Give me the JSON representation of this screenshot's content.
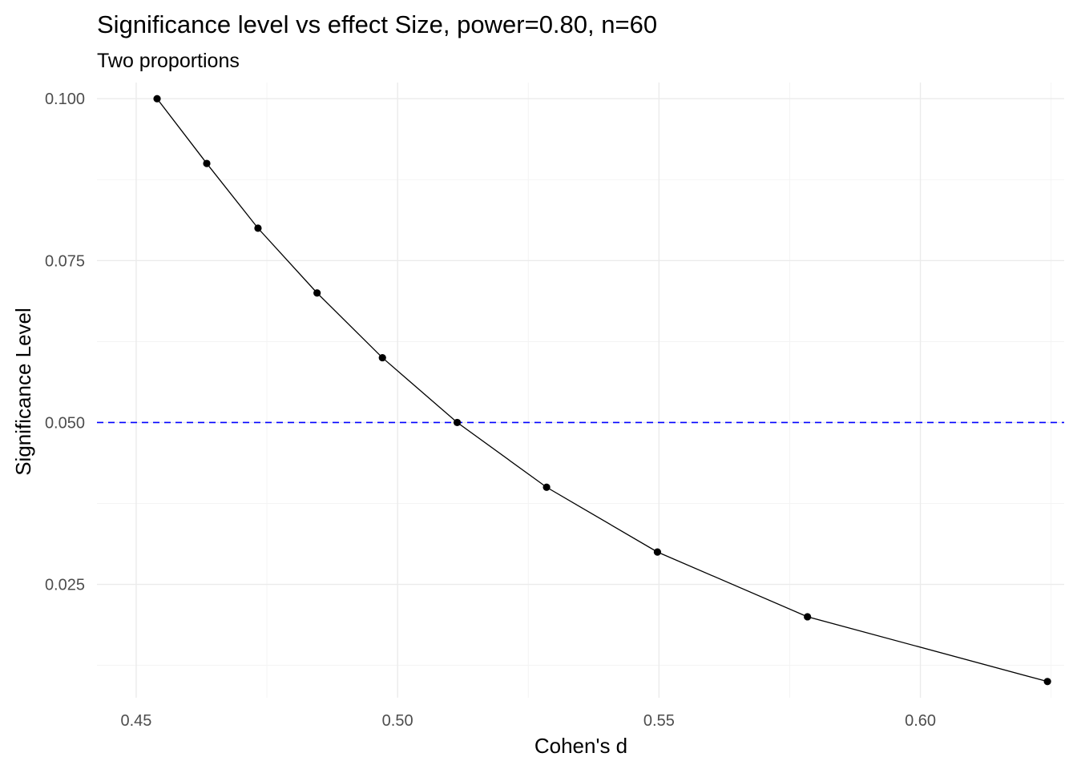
{
  "chart_data": {
    "type": "line",
    "title": "Significance level vs effect Size, power=0.80, n=60",
    "subtitle": "Two proportions",
    "xlabel": "Cohen's d",
    "ylabel": "Significance Level",
    "xlim": [
      0.4425,
      0.6275
    ],
    "ylim": [
      0.0075,
      0.1025
    ],
    "x_ticks": [
      0.45,
      0.5,
      0.55,
      0.6
    ],
    "x_tick_labels": [
      "0.45",
      "0.50",
      "0.55",
      "0.60"
    ],
    "x_minor_ticks": [
      0.475,
      0.525,
      0.575,
      0.625
    ],
    "y_ticks": [
      0.025,
      0.05,
      0.075,
      0.1
    ],
    "y_tick_labels": [
      "0.025",
      "0.050",
      "0.075",
      "0.100"
    ],
    "y_minor_ticks": [
      0.0125,
      0.0375,
      0.0625,
      0.0875
    ],
    "grid": true,
    "series": [
      {
        "color": "#000000",
        "markers": true,
        "x": [
          0.454,
          0.4635,
          0.4733,
          0.4846,
          0.4971,
          0.5114,
          0.5285,
          0.5497,
          0.5784,
          0.6243
        ],
        "y": [
          0.1,
          0.09,
          0.08,
          0.07,
          0.06,
          0.05,
          0.04,
          0.03,
          0.02,
          0.01
        ]
      }
    ],
    "reference_lines": [
      {
        "orientation": "horizontal",
        "y": 0.05,
        "style": "dashed",
        "color": "#0000ff"
      }
    ]
  }
}
